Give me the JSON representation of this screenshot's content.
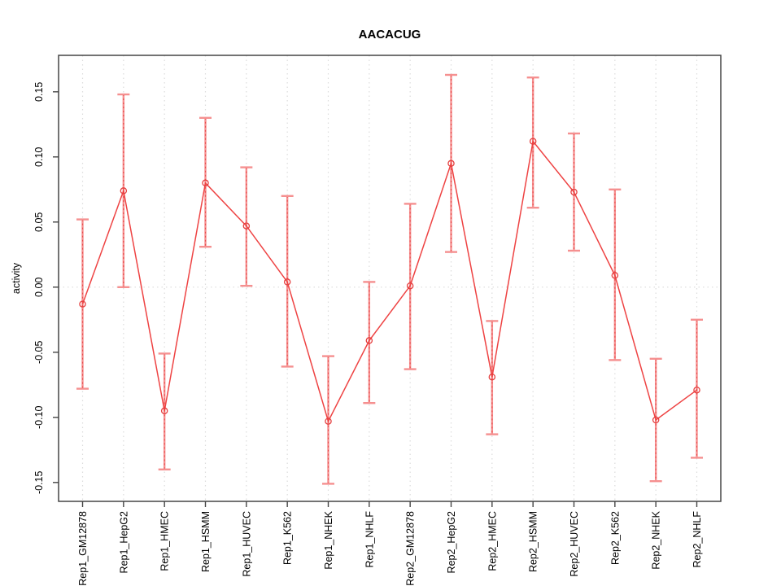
{
  "chart_data": {
    "type": "line",
    "title": "AACACUG",
    "xlabel": "",
    "ylabel": "activity",
    "categories": [
      "Rep1_GM12878",
      "Rep1_HepG2",
      "Rep1_HMEC",
      "Rep1_HSMM",
      "Rep1_HUVEC",
      "Rep1_K562",
      "Rep1_NHEK",
      "Rep1_NHLF",
      "Rep2_GM12878",
      "Rep2_HepG2",
      "Rep2_HMEC",
      "Rep2_HSMM",
      "Rep2_HUVEC",
      "Rep2_K562",
      "Rep2_NHEK",
      "Rep2_NHLF"
    ],
    "series": [
      {
        "name": "activity",
        "values": [
          -0.013,
          0.074,
          -0.095,
          0.08,
          0.047,
          0.004,
          -0.103,
          -0.041,
          0.001,
          0.095,
          -0.069,
          0.112,
          0.073,
          0.009,
          -0.102,
          -0.079
        ],
        "upper": [
          0.052,
          0.148,
          -0.051,
          0.13,
          0.092,
          0.07,
          -0.053,
          0.004,
          0.064,
          0.163,
          -0.026,
          0.161,
          0.118,
          0.075,
          -0.055,
          -0.025
        ],
        "lower": [
          -0.078,
          0.0,
          -0.14,
          0.031,
          0.001,
          -0.061,
          -0.151,
          -0.089,
          -0.063,
          0.027,
          -0.113,
          0.061,
          0.028,
          -0.056,
          -0.149,
          -0.131
        ]
      }
    ],
    "ylim": [
      -0.1645,
      0.178
    ],
    "yticks": [
      -0.15,
      -0.1,
      -0.05,
      0.0,
      0.05,
      0.1,
      0.15
    ],
    "ytick_labels": [
      "-0.15",
      "-0.10",
      "-0.05",
      "0.00",
      "0.05",
      "0.10",
      "0.15"
    ],
    "legend": "none",
    "grid": {
      "vertical": "dotted per category",
      "horizontal": "dotted zero line only"
    },
    "marker": "open-circle",
    "colors": {
      "line": "#ee4343",
      "error_bar": "#f59090",
      "error_bar_core": "#e84b4b",
      "marker_stroke": "#e53e3e",
      "gridline": "#dcdcdc",
      "axis": "#454545",
      "text": "#000000",
      "background": "#ffffff"
    }
  }
}
